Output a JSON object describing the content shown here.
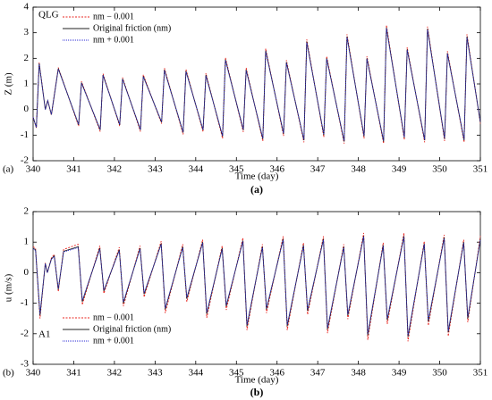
{
  "chart_data": [
    {
      "type": "line",
      "annotation": "QLG",
      "panel_label": "(a)",
      "caption": "(a)",
      "x_label": "Time (day)",
      "y_label": "Z (m)",
      "legend": "upper left",
      "xlim": [
        340,
        351
      ],
      "xticks": [
        340,
        341,
        342,
        343,
        344,
        345,
        346,
        347,
        348,
        349,
        350,
        351
      ],
      "ylim": [
        -2,
        4
      ],
      "yticks": [
        -2,
        -1,
        0,
        1,
        2,
        3,
        4
      ],
      "x": [
        340.0,
        340.08,
        340.15,
        340.3,
        340.36,
        340.45,
        340.62,
        341.12,
        341.19,
        341.65,
        341.72,
        342.13,
        342.2,
        342.64,
        342.71,
        343.16,
        343.23,
        343.69,
        343.76,
        344.18,
        344.25,
        344.66,
        344.73,
        345.17,
        345.24,
        345.65,
        345.72,
        346.16,
        346.23,
        346.66,
        346.73,
        347.15,
        347.22,
        347.65,
        347.72,
        348.14,
        348.21,
        348.62,
        348.69,
        349.13,
        349.2,
        349.63,
        349.7,
        350.12,
        350.19,
        350.6,
        350.67,
        351.0
      ],
      "series": [
        {
          "name": "nm − 0.001",
          "color": "#e8251f",
          "dash": "2,1.5",
          "values": [
            -0.3,
            -0.72,
            1.84,
            0.0,
            0.36,
            -0.22,
            1.64,
            -0.65,
            1.1,
            -0.86,
            1.4,
            -0.65,
            1.25,
            -0.86,
            1.36,
            -0.55,
            1.62,
            -0.97,
            1.57,
            -0.87,
            1.42,
            -1.13,
            2.03,
            -0.88,
            1.63,
            -1.23,
            2.38,
            -1.03,
            1.93,
            -1.28,
            2.74,
            -1.08,
            2.08,
            -1.33,
            2.94,
            -1.13,
            2.08,
            -1.33,
            3.3,
            -1.18,
            2.43,
            -1.28,
            3.24,
            -1.23,
            2.28,
            -1.28,
            2.94,
            -0.55
          ]
        },
        {
          "name": "Original friction (nm)",
          "color": "#222222",
          "values": [
            -0.3,
            -0.7,
            1.8,
            0.0,
            0.35,
            -0.2,
            1.6,
            -0.6,
            1.05,
            -0.8,
            1.35,
            -0.6,
            1.2,
            -0.8,
            1.3,
            -0.5,
            1.55,
            -0.9,
            1.5,
            -0.8,
            1.35,
            -1.05,
            1.95,
            -0.8,
            1.55,
            -1.15,
            2.3,
            -0.95,
            1.85,
            -1.2,
            2.65,
            -1.0,
            2.0,
            -1.25,
            2.85,
            -1.05,
            2.0,
            -1.25,
            3.2,
            -1.1,
            2.35,
            -1.2,
            3.15,
            -1.15,
            2.2,
            -1.2,
            2.85,
            -0.5
          ]
        },
        {
          "name": "nm + 0.001",
          "color": "#2b2bd6",
          "dash": "1,1",
          "values": [
            -0.3,
            -0.69,
            1.78,
            0.0,
            0.34,
            -0.19,
            1.58,
            -0.58,
            1.03,
            -0.78,
            1.33,
            -0.58,
            1.18,
            -0.78,
            1.28,
            -0.48,
            1.52,
            -0.87,
            1.47,
            -0.78,
            1.32,
            -1.02,
            1.92,
            -0.78,
            1.52,
            -1.12,
            2.27,
            -0.92,
            1.82,
            -1.17,
            2.61,
            -0.97,
            1.97,
            -1.22,
            2.81,
            -1.02,
            1.97,
            -1.22,
            3.16,
            -1.07,
            2.32,
            -1.17,
            3.11,
            -1.12,
            2.17,
            -1.17,
            2.81,
            -0.48
          ]
        }
      ]
    },
    {
      "type": "line",
      "annotation": "A1",
      "panel_label": "(b)",
      "caption": "(b)",
      "x_label": "Time (day)",
      "y_label": "u (m/s)",
      "legend": "lower left",
      "xlim": [
        340,
        351
      ],
      "xticks": [
        340,
        341,
        342,
        343,
        344,
        345,
        346,
        347,
        348,
        349,
        350,
        351
      ],
      "ylim": [
        -3,
        2
      ],
      "yticks": [
        -3,
        -2,
        -1,
        0,
        1,
        2
      ],
      "x": [
        340.0,
        340.06,
        340.17,
        340.3,
        340.35,
        340.45,
        340.52,
        340.62,
        340.75,
        341.11,
        341.21,
        341.64,
        341.74,
        342.12,
        342.22,
        342.63,
        342.73,
        343.15,
        343.25,
        343.68,
        343.78,
        344.17,
        344.27,
        344.65,
        344.75,
        345.16,
        345.26,
        345.64,
        345.74,
        346.15,
        346.25,
        346.65,
        346.75,
        347.14,
        347.24,
        347.64,
        347.74,
        348.13,
        348.23,
        348.61,
        348.71,
        349.12,
        349.22,
        349.62,
        349.72,
        350.11,
        350.21,
        350.59,
        350.69,
        351.0
      ],
      "series": [
        {
          "name": "nm − 0.001",
          "color": "#e8251f",
          "dash": "2,1.5",
          "values": [
            0.85,
            0.8,
            -1.5,
            0.32,
            0.0,
            0.48,
            0.6,
            -0.62,
            0.76,
            0.93,
            -1.05,
            0.88,
            -0.68,
            0.83,
            -1.1,
            0.88,
            -0.8,
            1.03,
            -1.32,
            0.93,
            -0.95,
            1.08,
            -1.48,
            0.88,
            -1.22,
            1.14,
            -1.88,
            0.93,
            -1.32,
            1.19,
            -1.88,
            0.98,
            -1.37,
            1.19,
            -1.98,
            0.93,
            -1.52,
            1.3,
            -2.2,
            0.98,
            -1.68,
            1.3,
            -2.25,
            1.03,
            -1.73,
            1.24,
            -2.08,
            1.08,
            -1.62,
            1.2
          ]
        },
        {
          "name": "Original friction (nm)",
          "color": "#222222",
          "values": [
            0.8,
            0.75,
            -1.4,
            0.3,
            0.0,
            0.45,
            0.55,
            -0.55,
            0.7,
            0.85,
            -0.95,
            0.8,
            -0.6,
            0.75,
            -1.0,
            0.8,
            -0.7,
            0.95,
            -1.2,
            0.85,
            -0.85,
            1.0,
            -1.35,
            0.8,
            -1.1,
            1.05,
            -1.75,
            0.85,
            -1.2,
            1.1,
            -1.75,
            0.9,
            -1.25,
            1.1,
            -1.85,
            0.85,
            -1.4,
            1.2,
            -2.05,
            0.9,
            -1.55,
            1.2,
            -2.1,
            0.95,
            -1.6,
            1.15,
            -1.95,
            1.0,
            -1.5,
            1.1
          ]
        },
        {
          "name": "nm + 0.001",
          "color": "#2b2bd6",
          "dash": "1,1",
          "values": [
            0.78,
            0.73,
            -1.35,
            0.29,
            0.0,
            0.44,
            0.53,
            -0.52,
            0.68,
            0.82,
            -0.9,
            0.77,
            -0.57,
            0.72,
            -0.95,
            0.77,
            -0.66,
            0.92,
            -1.15,
            0.82,
            -0.8,
            0.97,
            -1.3,
            0.77,
            -1.05,
            1.02,
            -1.7,
            0.82,
            -1.15,
            1.07,
            -1.7,
            0.87,
            -1.2,
            1.07,
            -1.8,
            0.82,
            -1.35,
            1.17,
            -2.0,
            0.87,
            -1.5,
            1.17,
            -2.05,
            0.92,
            -1.55,
            1.12,
            -1.9,
            0.97,
            -1.45,
            1.07
          ]
        }
      ]
    }
  ]
}
